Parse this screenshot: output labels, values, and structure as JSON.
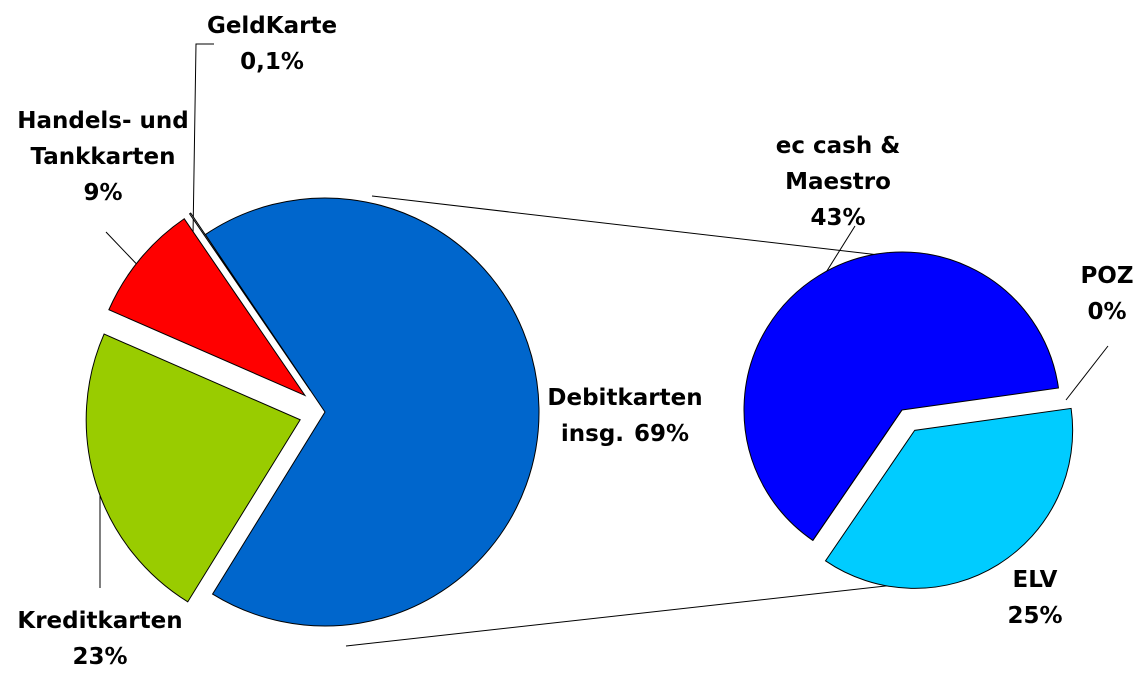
{
  "chart_data": [
    {
      "type": "pie",
      "categories": [
        "Debitkarten insg.",
        "Kreditkarten",
        "Handels- und Tankkarten",
        "GeldKarte"
      ],
      "values": [
        69,
        23,
        9,
        0.1
      ],
      "value_labels": [
        "69%",
        "23%",
        "9%",
        "0,1%"
      ],
      "colors": [
        "#0066cc",
        "#99cc00",
        "#ff0000",
        "#ffffff"
      ]
    },
    {
      "type": "pie",
      "categories": [
        "ec cash & Maestro",
        "POZ",
        "ELV"
      ],
      "values": [
        43,
        0,
        25
      ],
      "value_labels": [
        "43%",
        "0%",
        "25%"
      ],
      "colors": [
        "#0000ff",
        "#ffffff",
        "#00ccff"
      ]
    }
  ]
}
